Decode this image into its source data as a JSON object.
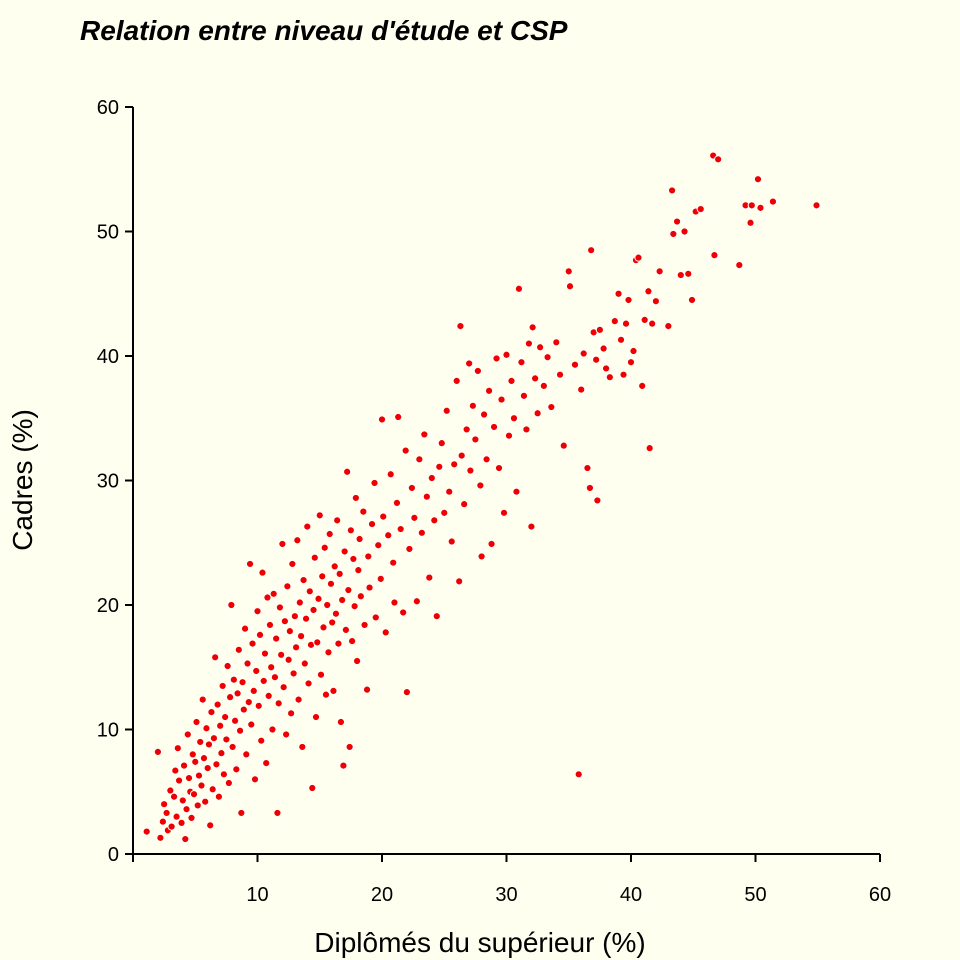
{
  "chart_data": {
    "type": "scatter",
    "title": "Relation entre niveau d'étude et CSP",
    "xlabel": "Diplômés du supérieur (%)",
    "ylabel": "Cadres (%)",
    "xlim": [
      0,
      60
    ],
    "ylim": [
      0,
      60
    ],
    "xticks": [
      "0",
      "10",
      "20",
      "30",
      "40",
      "50",
      "60"
    ],
    "yticks": [
      "0",
      "10",
      "20",
      "30",
      "40",
      "50",
      "60"
    ],
    "grid": false,
    "legend": "none",
    "point_color": "#EE0000",
    "point_edge_color": "#FFFFFF",
    "background_color": "#FFFFF0",
    "points": [
      [
        1.1,
        1.8
      ],
      [
        2.0,
        8.2
      ],
      [
        2.2,
        1.3
      ],
      [
        2.4,
        2.6
      ],
      [
        2.5,
        4.0
      ],
      [
        2.7,
        3.3
      ],
      [
        2.8,
        1.9
      ],
      [
        3.0,
        5.1
      ],
      [
        3.1,
        2.2
      ],
      [
        3.3,
        4.6
      ],
      [
        3.4,
        6.7
      ],
      [
        3.5,
        3.0
      ],
      [
        3.6,
        8.5
      ],
      [
        3.7,
        5.9
      ],
      [
        3.9,
        2.5
      ],
      [
        4.0,
        4.3
      ],
      [
        4.1,
        7.1
      ],
      [
        4.2,
        1.2
      ],
      [
        4.3,
        3.6
      ],
      [
        4.4,
        9.6
      ],
      [
        4.5,
        6.1
      ],
      [
        4.6,
        5.0
      ],
      [
        4.7,
        2.9
      ],
      [
        4.8,
        8.0
      ],
      [
        4.9,
        4.8
      ],
      [
        5.0,
        7.4
      ],
      [
        5.1,
        10.6
      ],
      [
        5.2,
        3.9
      ],
      [
        5.3,
        6.3
      ],
      [
        5.4,
        9.0
      ],
      [
        5.5,
        5.5
      ],
      [
        5.6,
        12.4
      ],
      [
        5.7,
        7.7
      ],
      [
        5.8,
        4.2
      ],
      [
        5.9,
        10.1
      ],
      [
        6.0,
        6.9
      ],
      [
        6.1,
        8.8
      ],
      [
        6.2,
        2.3
      ],
      [
        6.3,
        11.4
      ],
      [
        6.4,
        5.2
      ],
      [
        6.5,
        9.3
      ],
      [
        6.6,
        15.8
      ],
      [
        6.7,
        7.2
      ],
      [
        6.8,
        12.0
      ],
      [
        6.9,
        4.6
      ],
      [
        7.0,
        10.3
      ],
      [
        7.1,
        8.1
      ],
      [
        7.2,
        13.5
      ],
      [
        7.3,
        6.4
      ],
      [
        7.4,
        11.0
      ],
      [
        7.5,
        9.2
      ],
      [
        7.6,
        15.1
      ],
      [
        7.7,
        5.7
      ],
      [
        7.8,
        12.6
      ],
      [
        7.9,
        20.0
      ],
      [
        8.0,
        8.6
      ],
      [
        8.1,
        14.0
      ],
      [
        8.2,
        10.7
      ],
      [
        8.3,
        6.8
      ],
      [
        8.4,
        12.9
      ],
      [
        8.5,
        16.4
      ],
      [
        8.6,
        9.9
      ],
      [
        8.7,
        3.3
      ],
      [
        8.8,
        13.8
      ],
      [
        8.9,
        11.6
      ],
      [
        9.0,
        18.1
      ],
      [
        9.1,
        8.0
      ],
      [
        9.2,
        15.3
      ],
      [
        9.3,
        12.2
      ],
      [
        9.4,
        23.3
      ],
      [
        9.5,
        10.4
      ],
      [
        9.6,
        16.9
      ],
      [
        9.7,
        13.1
      ],
      [
        9.8,
        6.0
      ],
      [
        9.9,
        14.7
      ],
      [
        10.0,
        19.5
      ],
      [
        10.1,
        11.9
      ],
      [
        10.2,
        17.6
      ],
      [
        10.3,
        9.1
      ],
      [
        10.4,
        22.6
      ],
      [
        10.5,
        13.9
      ],
      [
        10.6,
        16.1
      ],
      [
        10.7,
        7.3
      ],
      [
        10.8,
        20.6
      ],
      [
        10.9,
        12.7
      ],
      [
        11.0,
        18.4
      ],
      [
        11.1,
        15.0
      ],
      [
        11.2,
        10.0
      ],
      [
        11.3,
        20.9
      ],
      [
        11.4,
        14.2
      ],
      [
        11.5,
        17.3
      ],
      [
        11.6,
        3.3
      ],
      [
        11.7,
        12.1
      ],
      [
        11.8,
        19.8
      ],
      [
        11.9,
        16.0
      ],
      [
        12.0,
        24.9
      ],
      [
        12.1,
        13.4
      ],
      [
        12.2,
        18.7
      ],
      [
        12.3,
        9.6
      ],
      [
        12.4,
        21.5
      ],
      [
        12.5,
        15.6
      ],
      [
        12.6,
        17.9
      ],
      [
        12.7,
        11.3
      ],
      [
        12.8,
        23.3
      ],
      [
        12.9,
        14.5
      ],
      [
        13.0,
        19.1
      ],
      [
        13.1,
        16.6
      ],
      [
        13.2,
        25.2
      ],
      [
        13.3,
        12.4
      ],
      [
        13.4,
        20.2
      ],
      [
        13.5,
        17.5
      ],
      [
        13.6,
        8.6
      ],
      [
        13.7,
        22.0
      ],
      [
        13.8,
        15.3
      ],
      [
        13.9,
        18.9
      ],
      [
        14.0,
        26.3
      ],
      [
        14.1,
        13.7
      ],
      [
        14.2,
        21.1
      ],
      [
        14.3,
        16.8
      ],
      [
        14.4,
        5.3
      ],
      [
        14.5,
        19.6
      ],
      [
        14.6,
        23.8
      ],
      [
        14.7,
        11.0
      ],
      [
        14.8,
        17.0
      ],
      [
        14.9,
        20.5
      ],
      [
        15.0,
        27.2
      ],
      [
        15.1,
        14.4
      ],
      [
        15.2,
        22.3
      ],
      [
        15.3,
        18.2
      ],
      [
        15.4,
        24.6
      ],
      [
        15.5,
        12.8
      ],
      [
        15.6,
        20.0
      ],
      [
        15.7,
        16.2
      ],
      [
        15.8,
        25.7
      ],
      [
        15.9,
        21.7
      ],
      [
        16.0,
        18.6
      ],
      [
        16.1,
        13.1
      ],
      [
        16.2,
        23.1
      ],
      [
        16.3,
        19.3
      ],
      [
        16.4,
        26.8
      ],
      [
        16.5,
        16.9
      ],
      [
        16.6,
        22.5
      ],
      [
        16.7,
        10.6
      ],
      [
        16.8,
        20.4
      ],
      [
        16.9,
        7.1
      ],
      [
        17.0,
        24.3
      ],
      [
        17.1,
        18.0
      ],
      [
        17.2,
        30.7
      ],
      [
        17.3,
        21.2
      ],
      [
        17.4,
        8.6
      ],
      [
        17.5,
        26.0
      ],
      [
        17.6,
        17.1
      ],
      [
        17.7,
        23.7
      ],
      [
        17.8,
        19.9
      ],
      [
        17.9,
        28.6
      ],
      [
        18.0,
        15.5
      ],
      [
        18.1,
        22.8
      ],
      [
        18.2,
        25.3
      ],
      [
        18.3,
        20.7
      ],
      [
        18.5,
        27.5
      ],
      [
        18.6,
        18.4
      ],
      [
        18.8,
        13.2
      ],
      [
        18.9,
        23.9
      ],
      [
        19.0,
        21.4
      ],
      [
        19.2,
        26.5
      ],
      [
        19.4,
        29.8
      ],
      [
        19.5,
        19.0
      ],
      [
        19.7,
        24.8
      ],
      [
        19.9,
        22.1
      ],
      [
        20.0,
        34.9
      ],
      [
        20.1,
        27.1
      ],
      [
        20.3,
        17.8
      ],
      [
        20.5,
        25.6
      ],
      [
        20.7,
        30.5
      ],
      [
        20.9,
        23.4
      ],
      [
        21.0,
        20.2
      ],
      [
        21.2,
        28.2
      ],
      [
        21.3,
        35.1
      ],
      [
        21.5,
        26.1
      ],
      [
        21.7,
        19.4
      ],
      [
        21.9,
        32.4
      ],
      [
        22.0,
        13.0
      ],
      [
        22.2,
        24.5
      ],
      [
        22.4,
        29.4
      ],
      [
        22.6,
        27.0
      ],
      [
        22.8,
        20.3
      ],
      [
        23.0,
        31.7
      ],
      [
        23.2,
        25.8
      ],
      [
        23.4,
        33.7
      ],
      [
        23.6,
        28.7
      ],
      [
        23.8,
        22.2
      ],
      [
        24.0,
        30.2
      ],
      [
        24.2,
        26.8
      ],
      [
        24.4,
        19.1
      ],
      [
        24.6,
        31.1
      ],
      [
        24.8,
        33.0
      ],
      [
        25.0,
        27.4
      ],
      [
        25.2,
        35.6
      ],
      [
        25.4,
        29.1
      ],
      [
        25.6,
        25.1
      ],
      [
        25.8,
        31.3
      ],
      [
        26.0,
        38.0
      ],
      [
        26.2,
        21.9
      ],
      [
        26.3,
        42.4
      ],
      [
        26.4,
        32.0
      ],
      [
        26.6,
        28.1
      ],
      [
        26.8,
        34.1
      ],
      [
        27.0,
        39.4
      ],
      [
        27.1,
        30.8
      ],
      [
        27.3,
        36.0
      ],
      [
        27.5,
        33.3
      ],
      [
        27.7,
        38.8
      ],
      [
        27.9,
        29.6
      ],
      [
        28.0,
        23.9
      ],
      [
        28.2,
        35.3
      ],
      [
        28.4,
        31.7
      ],
      [
        28.6,
        37.2
      ],
      [
        28.8,
        24.9
      ],
      [
        29.0,
        34.3
      ],
      [
        29.2,
        39.8
      ],
      [
        29.4,
        31.0
      ],
      [
        29.6,
        36.5
      ],
      [
        29.8,
        27.4
      ],
      [
        30.0,
        40.1
      ],
      [
        30.2,
        33.6
      ],
      [
        30.4,
        38.0
      ],
      [
        30.6,
        35.0
      ],
      [
        30.8,
        29.1
      ],
      [
        31.0,
        45.4
      ],
      [
        31.2,
        39.5
      ],
      [
        31.4,
        36.8
      ],
      [
        31.6,
        34.1
      ],
      [
        31.8,
        41.0
      ],
      [
        32.0,
        26.3
      ],
      [
        32.1,
        42.3
      ],
      [
        32.3,
        38.2
      ],
      [
        32.5,
        35.4
      ],
      [
        32.7,
        40.7
      ],
      [
        33.0,
        37.6
      ],
      [
        33.3,
        39.9
      ],
      [
        33.6,
        35.9
      ],
      [
        34.0,
        41.1
      ],
      [
        34.3,
        38.5
      ],
      [
        34.6,
        32.8
      ],
      [
        35.0,
        46.8
      ],
      [
        35.1,
        45.6
      ],
      [
        35.5,
        39.3
      ],
      [
        35.8,
        6.4
      ],
      [
        36.0,
        37.3
      ],
      [
        36.2,
        40.2
      ],
      [
        36.5,
        31.0
      ],
      [
        36.7,
        29.4
      ],
      [
        36.8,
        48.5
      ],
      [
        37.0,
        41.9
      ],
      [
        37.2,
        39.7
      ],
      [
        37.3,
        28.4
      ],
      [
        37.5,
        42.1
      ],
      [
        37.8,
        40.6
      ],
      [
        38.0,
        39.0
      ],
      [
        38.3,
        38.3
      ],
      [
        38.7,
        42.8
      ],
      [
        39.0,
        45.0
      ],
      [
        39.2,
        41.3
      ],
      [
        39.4,
        38.5
      ],
      [
        39.6,
        42.6
      ],
      [
        39.8,
        44.5
      ],
      [
        40.0,
        39.5
      ],
      [
        40.2,
        40.4
      ],
      [
        40.4,
        47.7
      ],
      [
        40.6,
        47.9
      ],
      [
        40.9,
        37.6
      ],
      [
        41.1,
        42.9
      ],
      [
        41.4,
        45.2
      ],
      [
        41.5,
        32.6
      ],
      [
        41.7,
        42.6
      ],
      [
        42.0,
        44.4
      ],
      [
        42.3,
        46.8
      ],
      [
        43.0,
        42.4
      ],
      [
        43.3,
        53.3
      ],
      [
        43.4,
        49.8
      ],
      [
        43.7,
        50.8
      ],
      [
        44.0,
        46.5
      ],
      [
        44.3,
        50.0
      ],
      [
        44.6,
        46.6
      ],
      [
        44.9,
        44.5
      ],
      [
        45.2,
        51.6
      ],
      [
        45.6,
        51.8
      ],
      [
        46.6,
        56.1
      ],
      [
        46.7,
        48.1
      ],
      [
        47.0,
        55.8
      ],
      [
        48.7,
        47.3
      ],
      [
        49.2,
        52.1
      ],
      [
        49.6,
        50.7
      ],
      [
        49.7,
        52.1
      ],
      [
        50.2,
        54.2
      ],
      [
        50.4,
        51.9
      ],
      [
        51.4,
        52.4
      ],
      [
        54.9,
        52.1
      ]
    ]
  }
}
